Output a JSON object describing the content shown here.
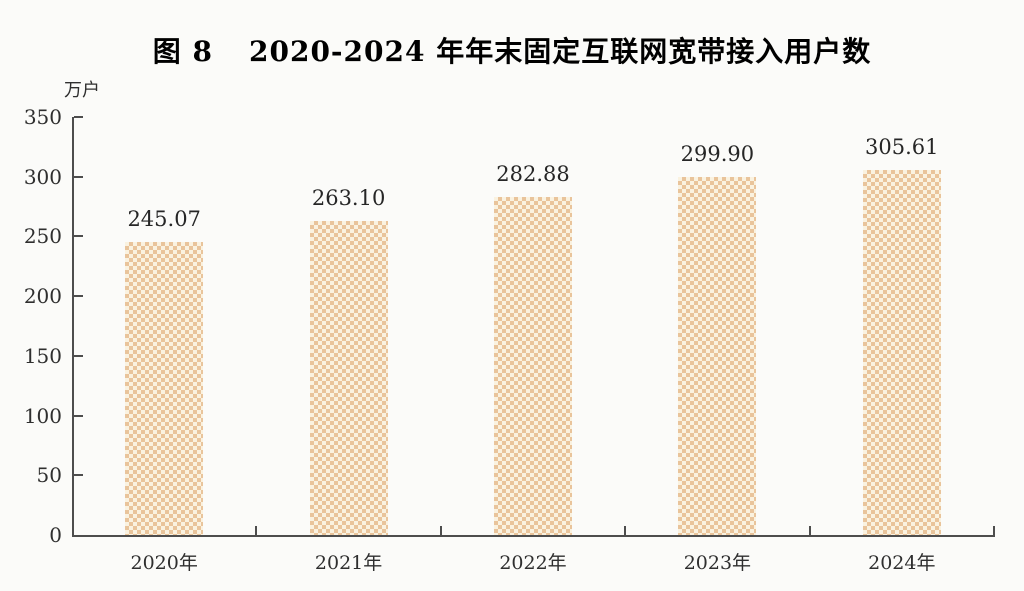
{
  "title": {
    "figure_label": "图 8",
    "text": "2020-2024 年年末固定互联网宽带接入用户数"
  },
  "chart_data": {
    "type": "bar",
    "title": "图 8 2020-2024 年年末固定互联网宽带接入用户数",
    "unit_label": "万户",
    "categories": [
      "2020年",
      "2021年",
      "2022年",
      "2023年",
      "2024年"
    ],
    "values": [
      245.07,
      263.1,
      282.88,
      299.9,
      305.61
    ],
    "value_labels": [
      "245.07",
      "263.10",
      "282.88",
      "299.90",
      "305.61"
    ],
    "xlabel": "",
    "ylabel": "万户",
    "ylim": [
      0,
      350
    ],
    "yticks": [
      0,
      50,
      100,
      150,
      200,
      250,
      300,
      350
    ],
    "grid": false,
    "legend": "none",
    "colors": {
      "bar_pattern_dark": "#e9c49b",
      "bar_pattern_light": "#faf2e0",
      "axis": "#4d4d4d",
      "tick_text": "#2f2f2f",
      "value_text": "#262626",
      "title_text": "#000000",
      "background": "#fbfbf9"
    }
  }
}
